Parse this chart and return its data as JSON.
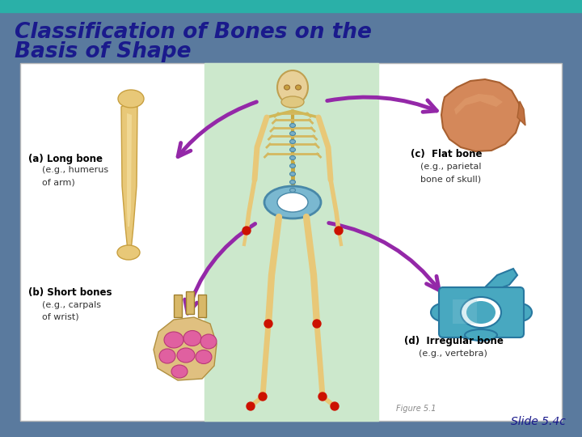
{
  "title_line1": "Classification of Bones on the",
  "title_line2": "Basis of Shape",
  "title_color": "#1a1a8c",
  "title_fontsize": 19,
  "bg_color": "#5a7a9e",
  "top_bar_color": "#2ab0a8",
  "slide_label": "Slide 5.4c",
  "slide_label_color": "#1a1a8c",
  "figure_label": "Figure 5.1",
  "figure_label_color": "#888888",
  "inner_box_color": "#ffffff",
  "center_box_color": "#cce8cc",
  "bone_color": "#e8c878",
  "bone_edge": "#c8a040",
  "flat_bone_color": "#d4885a",
  "flat_bone_edge": "#a86030",
  "carpal_color": "#e060a0",
  "carpal_edge": "#b83878",
  "vertebra_color": "#48a8c0",
  "vertebra_edge": "#2878a0",
  "pelvis_color": "#7ab8d0",
  "pelvis_edge": "#4888a8",
  "arrow_color": "#9428a8",
  "label_bold_color": "#000000",
  "label_normal_color": "#333333"
}
